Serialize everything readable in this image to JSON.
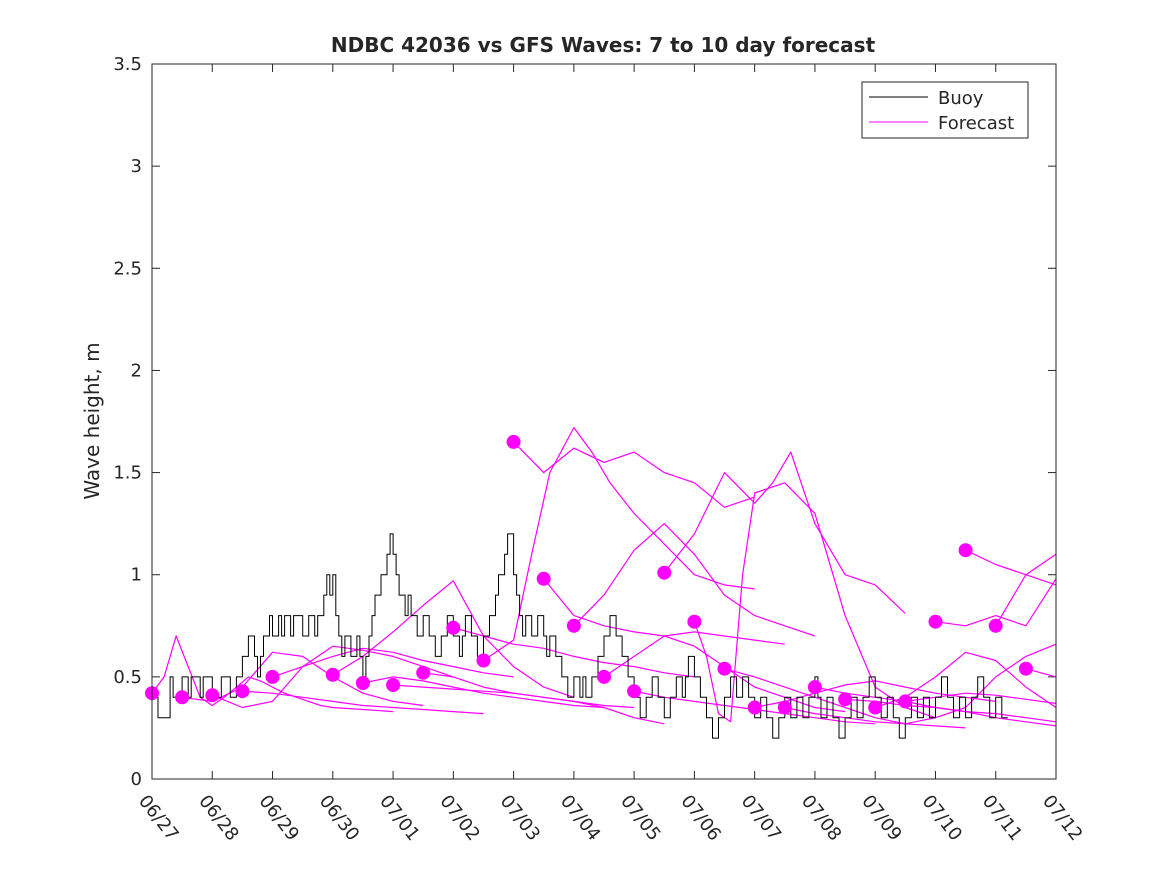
{
  "chart_data": {
    "type": "line",
    "title": "NDBC 42036 vs GFS Waves: 7 to 10 day forecast",
    "xlabel": "",
    "ylabel": "Wave height, m",
    "xlim": [
      "06/27",
      "07/12"
    ],
    "ylim": [
      0,
      3.5
    ],
    "x_ticks": [
      "06/27",
      "06/28",
      "06/29",
      "06/30",
      "07/01",
      "07/02",
      "07/03",
      "07/04",
      "07/05",
      "07/06",
      "07/07",
      "07/08",
      "07/09",
      "07/10",
      "07/11",
      "07/12"
    ],
    "y_ticks": [
      "0",
      "0.5",
      "1",
      "1.5",
      "2",
      "2.5",
      "3",
      "3.5"
    ],
    "grid": false,
    "legend": {
      "placement": "top-right",
      "entries": [
        "Buoy",
        "Forecast"
      ]
    },
    "colors": {
      "buoy": "#000000",
      "forecast": "#ff00ff",
      "axes": "#262626"
    },
    "buoy": {
      "name": "Buoy",
      "x_day": [
        0.0,
        0.1,
        0.3,
        0.35,
        0.5,
        0.6,
        0.65,
        0.8,
        0.85,
        1.0,
        1.15,
        1.3,
        1.4,
        1.5,
        1.6,
        1.7,
        1.75,
        1.8,
        1.85,
        1.95,
        2.0,
        2.1,
        2.15,
        2.2,
        2.3,
        2.35,
        2.5,
        2.6,
        2.7,
        2.75,
        2.85,
        2.9,
        2.95,
        3.0,
        3.05,
        3.1,
        3.15,
        3.2,
        3.3,
        3.4,
        3.45,
        3.5,
        3.55,
        3.6,
        3.65,
        3.7,
        3.8,
        3.9,
        3.95,
        4.0,
        4.05,
        4.1,
        4.2,
        4.25,
        4.3,
        4.4,
        4.5,
        4.6,
        4.7,
        4.8,
        4.9,
        5.0,
        5.1,
        5.15,
        5.2,
        5.3,
        5.4,
        5.5,
        5.6,
        5.7,
        5.75,
        5.85,
        5.9,
        6.0,
        6.05,
        6.1,
        6.15,
        6.2,
        6.3,
        6.4,
        6.5,
        6.55,
        6.6,
        6.7,
        6.8,
        6.9,
        7.0,
        7.1,
        7.15,
        7.2,
        7.3,
        7.4,
        7.5,
        7.6,
        7.7,
        7.8,
        7.9,
        8.0,
        8.1,
        8.2,
        8.3,
        8.4,
        8.5,
        8.6,
        8.7,
        8.8,
        8.85,
        8.9,
        9.0,
        9.1,
        9.2,
        9.3,
        9.4,
        9.5,
        9.6,
        9.7,
        9.8,
        9.9,
        10.0,
        10.1,
        10.2,
        10.3,
        10.4,
        10.5,
        10.6,
        10.7,
        10.8,
        10.9,
        11.0,
        11.05,
        11.1,
        11.2,
        11.3,
        11.4,
        11.5,
        11.6,
        11.7,
        11.8,
        11.9,
        12.0,
        12.1,
        12.2,
        12.3,
        12.4,
        12.5,
        12.6,
        12.7,
        12.8,
        12.9,
        13.0,
        13.1,
        13.2,
        13.3,
        13.4,
        13.5,
        13.6,
        13.7,
        13.8,
        13.9,
        14.0,
        14.1,
        14.2
      ],
      "y": [
        0.4,
        0.3,
        0.5,
        0.4,
        0.5,
        0.4,
        0.5,
        0.4,
        0.5,
        0.4,
        0.5,
        0.4,
        0.5,
        0.6,
        0.7,
        0.6,
        0.5,
        0.6,
        0.7,
        0.8,
        0.7,
        0.8,
        0.7,
        0.8,
        0.7,
        0.8,
        0.7,
        0.8,
        0.7,
        0.8,
        0.9,
        1.0,
        0.9,
        1.0,
        0.8,
        0.7,
        0.6,
        0.7,
        0.6,
        0.7,
        0.6,
        0.5,
        0.6,
        0.7,
        0.8,
        0.9,
        1.0,
        1.1,
        1.2,
        1.1,
        1.0,
        0.9,
        0.8,
        0.9,
        0.8,
        0.7,
        0.8,
        0.7,
        0.6,
        0.7,
        0.8,
        0.7,
        0.6,
        0.7,
        0.8,
        0.7,
        0.6,
        0.7,
        0.8,
        0.9,
        1.0,
        1.1,
        1.2,
        1.0,
        0.9,
        0.8,
        0.7,
        0.8,
        0.7,
        0.8,
        0.7,
        0.6,
        0.7,
        0.6,
        0.5,
        0.4,
        0.5,
        0.4,
        0.5,
        0.4,
        0.5,
        0.6,
        0.7,
        0.8,
        0.7,
        0.6,
        0.5,
        0.4,
        0.3,
        0.4,
        0.5,
        0.4,
        0.3,
        0.4,
        0.5,
        0.4,
        0.5,
        0.6,
        0.5,
        0.4,
        0.3,
        0.2,
        0.3,
        0.4,
        0.5,
        0.4,
        0.5,
        0.4,
        0.3,
        0.4,
        0.3,
        0.2,
        0.3,
        0.4,
        0.3,
        0.4,
        0.3,
        0.4,
        0.5,
        0.4,
        0.3,
        0.4,
        0.3,
        0.2,
        0.3,
        0.4,
        0.3,
        0.4,
        0.5,
        0.4,
        0.3,
        0.4,
        0.3,
        0.2,
        0.3,
        0.4,
        0.3,
        0.4,
        0.3,
        0.4,
        0.5,
        0.4,
        0.3,
        0.4,
        0.3,
        0.4,
        0.5,
        0.4,
        0.3,
        0.4,
        0.3,
        0.3
      ]
    },
    "forecast_runs": [
      {
        "name": "Forecast",
        "x_day": [
          0.0,
          0.2,
          0.4,
          0.6,
          0.8,
          1.0,
          1.2,
          1.4,
          1.6,
          1.8,
          2.0,
          2.2,
          2.4,
          2.6,
          2.8,
          3.0,
          3.5,
          4.0
        ],
        "y": [
          0.42,
          0.5,
          0.7,
          0.55,
          0.4,
          0.36,
          0.4,
          0.45,
          0.5,
          0.48,
          0.45,
          0.42,
          0.4,
          0.38,
          0.36,
          0.35,
          0.34,
          0.33
        ]
      },
      {
        "name": "Forecast",
        "x_day": [
          0.5,
          1.0,
          1.5,
          2.0,
          2.5,
          3.0,
          3.5,
          4.0,
          4.5
        ],
        "y": [
          0.4,
          0.38,
          0.45,
          0.62,
          0.6,
          0.5,
          0.42,
          0.38,
          0.36
        ]
      },
      {
        "name": "Forecast",
        "x_day": [
          1.0,
          1.5,
          2.0,
          2.5,
          3.0,
          3.5,
          4.0,
          4.5,
          5.0
        ],
        "y": [
          0.41,
          0.35,
          0.38,
          0.55,
          0.65,
          0.63,
          0.6,
          0.55,
          0.5
        ]
      },
      {
        "name": "Forecast",
        "x_day": [
          1.5,
          2.0,
          2.5,
          3.0,
          3.5,
          4.0,
          4.5,
          5.0,
          5.5
        ],
        "y": [
          0.43,
          0.42,
          0.4,
          0.38,
          0.36,
          0.35,
          0.34,
          0.33,
          0.32
        ]
      },
      {
        "name": "Forecast",
        "x_day": [
          2.0,
          2.5,
          3.0,
          3.5,
          4.0,
          4.5,
          5.0,
          5.5,
          6.0
        ],
        "y": [
          0.5,
          0.55,
          0.6,
          0.64,
          0.62,
          0.58,
          0.55,
          0.52,
          0.5
        ]
      },
      {
        "name": "Forecast",
        "x_day": [
          3.0,
          3.5,
          4.0,
          4.5,
          5.0,
          5.5,
          6.0,
          6.5,
          7.0
        ],
        "y": [
          0.51,
          0.6,
          0.72,
          0.85,
          0.97,
          0.7,
          0.55,
          0.45,
          0.4
        ]
      },
      {
        "name": "Forecast",
        "x_day": [
          3.5,
          4.0,
          4.5,
          5.0,
          5.5,
          6.0,
          6.5,
          7.0,
          7.5
        ],
        "y": [
          0.47,
          0.5,
          0.48,
          0.45,
          0.42,
          0.4,
          0.38,
          0.36,
          0.35
        ]
      },
      {
        "name": "Forecast",
        "x_day": [
          4.0,
          4.5,
          5.0,
          5.5,
          6.0,
          6.5,
          7.0,
          7.5,
          8.0
        ],
        "y": [
          0.46,
          0.45,
          0.44,
          0.43,
          0.42,
          0.4,
          0.38,
          0.36,
          0.35
        ]
      },
      {
        "name": "Forecast",
        "x_day": [
          4.5,
          5.0,
          5.5,
          6.0,
          6.5,
          7.0,
          7.5,
          8.0,
          8.5
        ],
        "y": [
          0.52,
          0.5,
          0.45,
          0.42,
          0.4,
          0.38,
          0.35,
          0.3,
          0.27
        ]
      },
      {
        "name": "Forecast",
        "x_day": [
          5.0,
          5.5,
          6.0,
          6.5,
          7.0,
          7.5,
          8.0,
          8.5,
          9.0
        ],
        "y": [
          0.74,
          0.7,
          0.66,
          0.64,
          0.6,
          0.57,
          0.55,
          0.52,
          0.5
        ]
      },
      {
        "name": "Forecast",
        "x_day": [
          5.5,
          6.0,
          6.3,
          6.6,
          7.0,
          7.3,
          7.6,
          8.0,
          8.5,
          9.0,
          9.5,
          10.0
        ],
        "y": [
          0.58,
          0.68,
          1.1,
          1.5,
          1.72,
          1.6,
          1.45,
          1.3,
          1.15,
          1.0,
          0.95,
          0.93
        ]
      },
      {
        "name": "Forecast",
        "x_day": [
          6.0,
          6.5,
          7.0,
          7.5,
          8.0,
          8.5,
          9.0,
          9.5,
          10.0
        ],
        "y": [
          1.65,
          1.5,
          1.62,
          1.55,
          1.6,
          1.5,
          1.45,
          1.33,
          1.38
        ]
      },
      {
        "name": "Forecast",
        "x_day": [
          6.5,
          7.0,
          7.5,
          8.0,
          8.5,
          9.0,
          9.5,
          10.0,
          10.5
        ],
        "y": [
          0.98,
          0.8,
          0.75,
          0.72,
          0.7,
          0.72,
          0.7,
          0.68,
          0.66
        ]
      },
      {
        "name": "Forecast",
        "x_day": [
          7.0,
          7.5,
          8.0,
          8.5,
          9.0,
          9.5,
          10.0,
          10.5,
          11.0
        ],
        "y": [
          0.75,
          0.9,
          1.12,
          1.25,
          1.1,
          0.9,
          0.8,
          0.75,
          0.7
        ]
      },
      {
        "name": "Forecast",
        "x_day": [
          7.5,
          8.0,
          8.5,
          9.0,
          9.5,
          10.0,
          10.5,
          11.0,
          11.5
        ],
        "y": [
          0.5,
          0.6,
          0.7,
          0.65,
          0.55,
          0.45,
          0.4,
          0.35,
          0.33
        ]
      },
      {
        "name": "Forecast",
        "x_day": [
          8.0,
          8.5,
          9.0,
          9.5,
          10.0,
          10.5,
          11.0,
          11.5,
          12.0
        ],
        "y": [
          0.43,
          0.4,
          0.38,
          0.36,
          0.34,
          0.32,
          0.3,
          0.28,
          0.27
        ]
      },
      {
        "name": "Forecast",
        "x_day": [
          8.5,
          9.0,
          9.5,
          10.0,
          10.3,
          10.6,
          11.0,
          11.5,
          12.0,
          12.5
        ],
        "y": [
          1.01,
          1.2,
          1.5,
          1.35,
          1.45,
          1.6,
          1.25,
          1.0,
          0.95,
          0.81
        ]
      },
      {
        "name": "Forecast",
        "x_day": [
          9.0,
          9.2,
          9.4,
          9.6,
          9.8,
          10.0,
          10.5,
          11.0,
          11.5,
          12.0,
          12.5,
          13.0
        ],
        "y": [
          0.77,
          0.6,
          0.32,
          0.28,
          1.0,
          1.4,
          1.45,
          1.3,
          0.8,
          0.45,
          0.35,
          0.3
        ]
      },
      {
        "name": "Forecast",
        "x_day": [
          9.5,
          10.0,
          10.5,
          11.0,
          11.5,
          12.0,
          12.5,
          13.0,
          13.5
        ],
        "y": [
          0.54,
          0.5,
          0.45,
          0.4,
          0.35,
          0.3,
          0.27,
          0.26,
          0.25
        ]
      },
      {
        "name": "Forecast",
        "x_day": [
          10.0,
          10.5,
          11.0,
          11.5,
          12.0,
          12.5,
          13.0,
          13.5,
          14.0
        ],
        "y": [
          0.35,
          0.38,
          0.42,
          0.46,
          0.48,
          0.45,
          0.42,
          0.4,
          0.38
        ]
      },
      {
        "name": "Forecast",
        "x_day": [
          10.5,
          11.0,
          11.5,
          12.0,
          12.5,
          13.0,
          13.5,
          14.0,
          14.5,
          15.0
        ],
        "y": [
          0.35,
          0.32,
          0.3,
          0.28,
          0.27,
          0.3,
          0.35,
          0.5,
          0.6,
          0.66
        ]
      },
      {
        "name": "Forecast",
        "x_day": [
          11.0,
          11.5,
          12.0,
          12.5,
          13.0,
          13.5,
          14.0,
          14.5,
          15.0
        ],
        "y": [
          0.45,
          0.42,
          0.4,
          0.38,
          0.35,
          0.33,
          0.3,
          0.28,
          0.26
        ]
      },
      {
        "name": "Forecast",
        "x_day": [
          11.5,
          12.0,
          12.5,
          13.0,
          13.5,
          14.0,
          14.5,
          15.0
        ],
        "y": [
          0.39,
          0.38,
          0.36,
          0.35,
          0.33,
          0.32,
          0.3,
          0.28
        ]
      },
      {
        "name": "Forecast",
        "x_day": [
          12.0,
          12.5,
          13.0,
          13.5,
          14.0,
          14.5,
          15.0
        ],
        "y": [
          0.35,
          0.4,
          0.5,
          0.62,
          0.58,
          0.45,
          0.35
        ]
      },
      {
        "name": "Forecast",
        "x_day": [
          12.5,
          13.0,
          13.5,
          14.0,
          14.5,
          15.0
        ],
        "y": [
          0.38,
          0.4,
          0.42,
          0.41,
          0.39,
          0.37
        ]
      },
      {
        "name": "Forecast",
        "x_day": [
          13.0,
          13.5,
          14.0,
          14.5,
          15.0
        ],
        "y": [
          0.77,
          0.75,
          0.8,
          0.75,
          0.98
        ]
      },
      {
        "name": "Forecast",
        "x_day": [
          13.5,
          14.0,
          14.5,
          15.0
        ],
        "y": [
          1.12,
          1.05,
          1.0,
          0.95
        ]
      },
      {
        "name": "Forecast",
        "x_day": [
          14.0,
          14.5,
          15.0
        ],
        "y": [
          0.75,
          1.0,
          1.1
        ]
      },
      {
        "name": "Forecast",
        "x_day": [
          14.5,
          15.0
        ],
        "y": [
          0.54,
          0.5
        ]
      }
    ],
    "forecast_markers": {
      "x_day": [
        0.0,
        0.5,
        1.0,
        1.5,
        2.0,
        3.0,
        3.5,
        4.0,
        4.5,
        5.0,
        5.5,
        6.0,
        6.5,
        7.0,
        7.5,
        8.0,
        8.5,
        9.0,
        9.5,
        10.0,
        10.5,
        11.0,
        11.5,
        12.0,
        12.5,
        13.0,
        13.5,
        14.0,
        14.5
      ],
      "y": [
        0.42,
        0.4,
        0.41,
        0.43,
        0.5,
        0.51,
        0.47,
        0.46,
        0.52,
        0.74,
        0.58,
        1.65,
        0.98,
        0.75,
        0.5,
        0.43,
        1.01,
        0.77,
        0.54,
        0.35,
        0.35,
        0.45,
        0.39,
        0.35,
        0.38,
        0.77,
        1.12,
        0.75,
        0.54
      ]
    }
  }
}
